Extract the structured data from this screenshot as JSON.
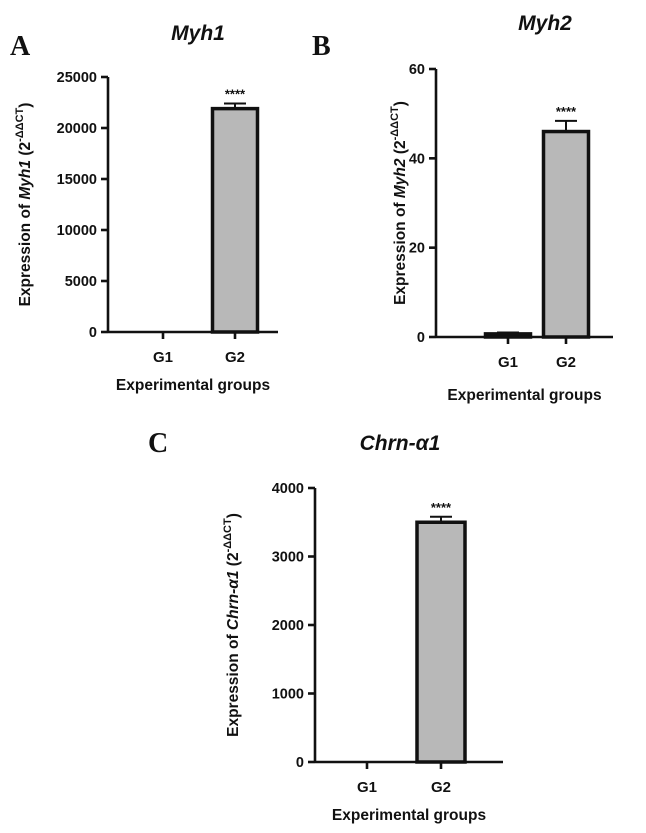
{
  "colors": {
    "bar_fill": "#b8b8b8",
    "axis": "#111111"
  },
  "chart_data": [
    {
      "type": "bar",
      "panel": "A",
      "title": "Myh1",
      "categories": [
        "G1",
        "G2"
      ],
      "values": [
        0,
        21900
      ],
      "error": [
        0,
        500
      ],
      "significance": [
        "",
        "****"
      ],
      "ylim": [
        0,
        25000
      ],
      "yticks": [
        "0",
        "5000",
        "10000",
        "15000",
        "20000",
        "25000"
      ],
      "xlabel": "Experimental groups",
      "ylabel": {
        "prefix": "Expression of ",
        "gene": "Myh1",
        "base": " (2",
        "sup": "-ΔΔCT",
        "suffix": ")"
      }
    },
    {
      "type": "bar",
      "panel": "B",
      "title": "Myh2",
      "categories": [
        "G1",
        "G2"
      ],
      "values": [
        0.7,
        46
      ],
      "error": [
        0.3,
        2.4
      ],
      "significance": [
        "",
        "****"
      ],
      "ylim": [
        0,
        60
      ],
      "yticks": [
        "0",
        "20",
        "40",
        "60"
      ],
      "xlabel": "Experimental groups",
      "ylabel": {
        "prefix": "Expression of ",
        "gene": "Myh2",
        "base": " (2",
        "sup": "-ΔΔCT",
        "suffix": ")"
      }
    },
    {
      "type": "bar",
      "panel": "C",
      "title": "Chrn-α1",
      "categories": [
        "G1",
        "G2"
      ],
      "values": [
        0,
        3500
      ],
      "error": [
        0,
        80
      ],
      "significance": [
        "",
        "****"
      ],
      "ylim": [
        0,
        4000
      ],
      "yticks": [
        "0",
        "1000",
        "2000",
        "3000",
        "4000"
      ],
      "xlabel": "Experimental groups",
      "ylabel": {
        "prefix": "Expression of ",
        "gene": "Chrn-α1",
        "base": " (2",
        "sup": "-ΔΔCT",
        "suffix": ")"
      }
    }
  ]
}
